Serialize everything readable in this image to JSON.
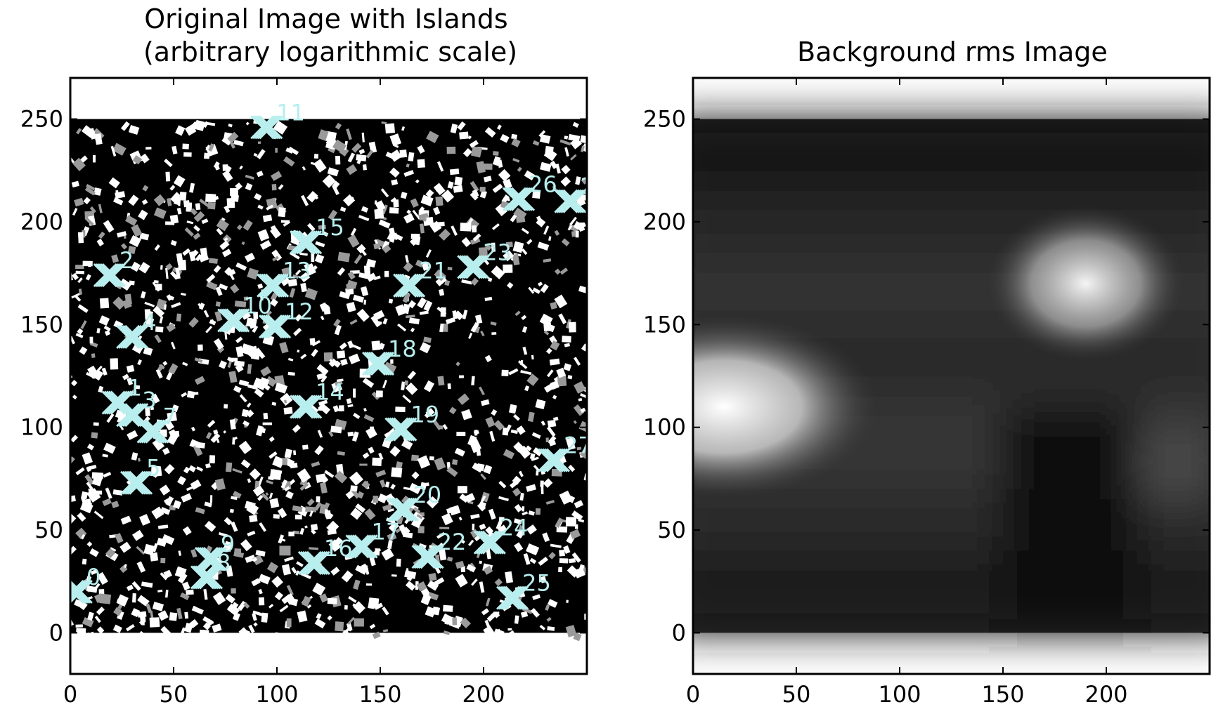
{
  "colors": {
    "background": "#ffffff",
    "axes": "#000000",
    "island_marker": "#b8eeee"
  },
  "chart_data": [
    {
      "type": "heatmap",
      "title": "Original Image with Islands\n(arbitrary logarithmic scale)",
      "xlabel": "",
      "ylabel": "",
      "xlim": [
        0,
        250
      ],
      "ylim": [
        -20,
        270
      ],
      "image_extent": {
        "x": [
          0,
          250
        ],
        "y": [
          0,
          250
        ]
      },
      "colormap": "gray (binary black/white noise)",
      "xticks": [
        0,
        50,
        100,
        150,
        200
      ],
      "yticks": [
        0,
        50,
        100,
        150,
        200,
        250
      ],
      "islands": [
        {
          "id": "0",
          "x": 3,
          "y": 20
        },
        {
          "id": "1",
          "x": 23,
          "y": 112
        },
        {
          "id": "2",
          "x": 19,
          "y": 174
        },
        {
          "id": "3",
          "x": 30,
          "y": 106
        },
        {
          "id": "4",
          "x": 30,
          "y": 144
        },
        {
          "id": "5",
          "x": 32,
          "y": 73
        },
        {
          "id": "7",
          "x": 40,
          "y": 98
        },
        {
          "id": "8",
          "x": 66,
          "y": 27
        },
        {
          "id": "9",
          "x": 68,
          "y": 36
        },
        {
          "id": "10",
          "x": 79,
          "y": 152
        },
        {
          "id": "11",
          "x": 95,
          "y": 246
        },
        {
          "id": "12",
          "x": 99,
          "y": 149
        },
        {
          "id": "13",
          "x": 98,
          "y": 169
        },
        {
          "id": "14",
          "x": 114,
          "y": 110
        },
        {
          "id": "15",
          "x": 114,
          "y": 190
        },
        {
          "id": "16",
          "x": 118,
          "y": 34
        },
        {
          "id": "17",
          "x": 141,
          "y": 42
        },
        {
          "id": "18",
          "x": 149,
          "y": 131
        },
        {
          "id": "19",
          "x": 160,
          "y": 99
        },
        {
          "id": "20",
          "x": 161,
          "y": 60
        },
        {
          "id": "21",
          "x": 164,
          "y": 169
        },
        {
          "id": "22",
          "x": 173,
          "y": 37
        },
        {
          "id": "23",
          "x": 195,
          "y": 178
        },
        {
          "id": "24",
          "x": 203,
          "y": 44
        },
        {
          "id": "25",
          "x": 214,
          "y": 17
        },
        {
          "id": "26",
          "x": 217,
          "y": 211
        },
        {
          "id": "27",
          "x": 234,
          "y": 84
        },
        {
          "id": "28",
          "x": 242,
          "y": 210
        }
      ]
    },
    {
      "type": "heatmap",
      "title": "Background rms Image",
      "xlabel": "",
      "ylabel": "",
      "xlim": [
        0,
        250
      ],
      "ylim": [
        -20,
        270
      ],
      "image_extent": {
        "x": [
          0,
          250
        ],
        "y": [
          0,
          250
        ]
      },
      "colormap": "gray",
      "xticks": [
        0,
        50,
        100,
        150,
        200
      ],
      "yticks": [
        0,
        50,
        100,
        150,
        200,
        250
      ],
      "bright_regions": [
        {
          "x": 15,
          "y": 110,
          "intensity": 1.0
        },
        {
          "x": 190,
          "y": 170,
          "intensity": 0.95
        }
      ]
    }
  ]
}
